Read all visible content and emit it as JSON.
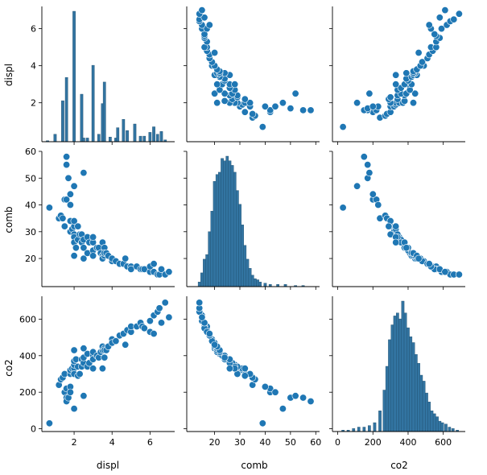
{
  "chart_data": {
    "type": "scatter",
    "kind": "pairplot",
    "variables": [
      "displ",
      "comb",
      "co2"
    ],
    "color": "#1f77b4",
    "bar_color": "#3274a1",
    "axes": {
      "displ": {
        "ticks": [
          2,
          4,
          6
        ],
        "range": [
          0.3,
          7.3
        ]
      },
      "comb": {
        "ticks": [
          20,
          30,
          40,
          50,
          60
        ],
        "range": [
          11.5,
          59.5
        ]
      },
      "co2": {
        "ticks": [
          0,
          200,
          400,
          600
        ],
        "range": [
          -15,
          725
        ]
      }
    },
    "tick_ranges": {
      "displ": {
        "x": [
          0.3,
          7.3
        ],
        "y": [
          -0.1,
          7.2
        ]
      },
      "comb": {
        "x": [
          9,
          61.5
        ],
        "y": [
          9.5,
          60
        ]
      },
      "co2": {
        "x": [
          -30,
          725
        ],
        "y": [
          -15,
          725
        ]
      }
    },
    "diagonal_histograms": [
      {
        "variable": "displ",
        "bins": [
          [
            0.6,
            0.05
          ],
          [
            1.0,
            0.4
          ],
          [
            1.4,
            2.2
          ],
          [
            1.6,
            3.45
          ],
          [
            2.0,
            7.0
          ],
          [
            2.4,
            2.55
          ],
          [
            2.5,
            0.2
          ],
          [
            2.7,
            0.2
          ],
          [
            3.0,
            4.1
          ],
          [
            3.3,
            0.4
          ],
          [
            3.5,
            2.05
          ],
          [
            3.6,
            3.2
          ],
          [
            3.9,
            0.25
          ],
          [
            4.2,
            0.2
          ],
          [
            4.3,
            0.75
          ],
          [
            4.6,
            1.2
          ],
          [
            4.8,
            0.6
          ],
          [
            5.2,
            0.95
          ],
          [
            5.5,
            0.3
          ],
          [
            5.7,
            0.3
          ],
          [
            6.0,
            0.5
          ],
          [
            6.2,
            0.8
          ],
          [
            6.4,
            0.4
          ],
          [
            6.6,
            0.55
          ],
          [
            6.8,
            0.1
          ]
        ]
      },
      {
        "variable": "comb",
        "bins": [
          [
            14,
            0.2
          ],
          [
            15,
            0.6
          ],
          [
            16,
            1.2
          ],
          [
            17,
            1.4
          ],
          [
            18,
            2.4
          ],
          [
            19,
            3.3
          ],
          [
            20,
            4.6
          ],
          [
            21,
            4.9
          ],
          [
            22,
            5.0
          ],
          [
            23,
            5.6
          ],
          [
            24,
            5.5
          ],
          [
            25,
            5.7
          ],
          [
            26,
            5.5
          ],
          [
            27,
            5.3
          ],
          [
            28,
            5.0
          ],
          [
            29,
            4.2
          ],
          [
            30,
            3.6
          ],
          [
            31,
            2.7
          ],
          [
            32,
            1.8
          ],
          [
            33,
            1.2
          ],
          [
            34,
            0.8
          ],
          [
            35,
            0.5
          ],
          [
            36,
            0.35
          ],
          [
            37,
            0.3
          ],
          [
            38,
            0.2
          ],
          [
            40,
            0.15
          ],
          [
            42,
            0.1
          ],
          [
            45,
            0.1
          ],
          [
            48,
            0.1
          ],
          [
            52,
            0.05
          ],
          [
            55,
            0.05
          ]
        ]
      },
      {
        "variable": "co2",
        "bins": [
          [
            30,
            0.05
          ],
          [
            60,
            0.05
          ],
          [
            90,
            0.1
          ],
          [
            120,
            0.15
          ],
          [
            150,
            0.15
          ],
          [
            180,
            0.2
          ],
          [
            210,
            0.3
          ],
          [
            240,
            0.7
          ],
          [
            265,
            1.4
          ],
          [
            280,
            2.2
          ],
          [
            295,
            3.1
          ],
          [
            310,
            3.6
          ],
          [
            325,
            3.9
          ],
          [
            340,
            4.0
          ],
          [
            355,
            3.8
          ],
          [
            370,
            4.4
          ],
          [
            385,
            4.0
          ],
          [
            400,
            3.5
          ],
          [
            415,
            3.2
          ],
          [
            430,
            3.0
          ],
          [
            445,
            2.6
          ],
          [
            460,
            2.3
          ],
          [
            475,
            1.9
          ],
          [
            490,
            1.7
          ],
          [
            505,
            1.3
          ],
          [
            520,
            1.0
          ],
          [
            535,
            0.7
          ],
          [
            550,
            0.6
          ],
          [
            565,
            0.5
          ],
          [
            580,
            0.35
          ],
          [
            595,
            0.3
          ],
          [
            615,
            0.25
          ],
          [
            635,
            0.15
          ],
          [
            655,
            0.1
          ],
          [
            680,
            0.05
          ]
        ]
      }
    ],
    "points": {
      "displ": [
        0.7,
        1.2,
        1.3,
        1.4,
        1.5,
        1.5,
        1.6,
        1.6,
        1.6,
        1.7,
        1.8,
        1.8,
        1.8,
        1.8,
        1.9,
        2.0,
        2.0,
        2.0,
        2.0,
        2.0,
        2.0,
        2.0,
        2.1,
        2.2,
        2.2,
        2.3,
        2.4,
        2.4,
        2.5,
        2.5,
        2.5,
        2.5,
        2.7,
        2.7,
        2.8,
        3.0,
        3.0,
        3.0,
        3.0,
        3.2,
        3.3,
        3.4,
        3.5,
        3.5,
        3.5,
        3.6,
        3.6,
        3.6,
        3.7,
        3.8,
        4.0,
        4.0,
        4.2,
        4.4,
        4.6,
        4.7,
        4.8,
        5.0,
        5.0,
        5.3,
        5.5,
        5.6,
        5.7,
        6.0,
        6.0,
        6.2,
        6.2,
        6.4,
        6.5,
        6.6,
        6.8,
        7.0
      ],
      "comb": [
        39,
        35,
        36,
        35,
        32,
        42,
        42,
        55,
        58,
        50,
        40,
        44,
        34,
        30,
        31,
        32,
        29,
        28,
        26,
        21,
        34,
        47,
        24,
        27,
        32,
        29,
        29,
        26,
        27,
        24,
        20,
        52,
        22,
        28,
        26,
        23,
        21,
        26,
        28,
        24,
        24,
        22,
        21,
        20,
        26,
        24,
        21,
        22,
        22,
        21,
        19,
        20,
        19,
        18,
        18,
        20,
        17,
        17,
        16,
        17,
        16,
        16,
        16,
        15,
        17,
        15,
        18,
        14,
        14,
        16,
        14,
        15
      ],
      "co2": [
        30,
        240,
        270,
        280,
        300,
        200,
        220,
        170,
        150,
        170,
        230,
        200,
        300,
        320,
        330,
        330,
        300,
        350,
        370,
        430,
        300,
        110,
        380,
        340,
        290,
        300,
        340,
        380,
        360,
        390,
        440,
        180,
        410,
        340,
        360,
        400,
        420,
        380,
        330,
        400,
        390,
        420,
        430,
        450,
        330,
        390,
        440,
        430,
        430,
        450,
        490,
        470,
        480,
        510,
        520,
        460,
        540,
        530,
        560,
        560,
        580,
        560,
        550,
        590,
        530,
        620,
        520,
        640,
        660,
        580,
        690,
        610
      ]
    }
  }
}
